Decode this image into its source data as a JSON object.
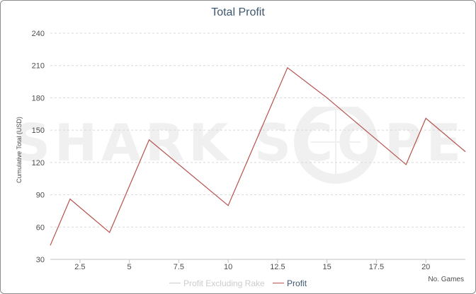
{
  "chart_data": {
    "type": "line",
    "title": "Total Profit",
    "ylabel": "Cumulative Total (USD)",
    "xlabel": "No. Games",
    "xlim": [
      1,
      22
    ],
    "ylim": [
      30,
      240
    ],
    "x_ticks": [
      2.5,
      5,
      7.5,
      10,
      12.5,
      15,
      17.5,
      20
    ],
    "y_ticks": [
      30,
      60,
      90,
      120,
      150,
      180,
      210,
      240
    ],
    "x_tick_labels": [
      "2.5",
      "5",
      "7.5",
      "10",
      "12.5",
      "15",
      "17.5",
      "20"
    ],
    "y_tick_labels": [
      "30",
      "60",
      "90",
      "120",
      "150",
      "180",
      "210",
      "240"
    ],
    "grid": true,
    "legend_position": "bottom",
    "series": [
      {
        "name": "Profit Excluding Rake",
        "color": "#cccccc",
        "visible": false,
        "x": [],
        "y": []
      },
      {
        "name": "Profit",
        "color": "#b5524e",
        "visible": true,
        "x": [
          1,
          2,
          4,
          6,
          10,
          13,
          15,
          19,
          20,
          22
        ],
        "y": [
          43,
          86,
          55,
          141,
          80,
          208,
          180,
          118,
          161,
          130
        ]
      }
    ],
    "watermark": "SHARK SCOPE"
  }
}
